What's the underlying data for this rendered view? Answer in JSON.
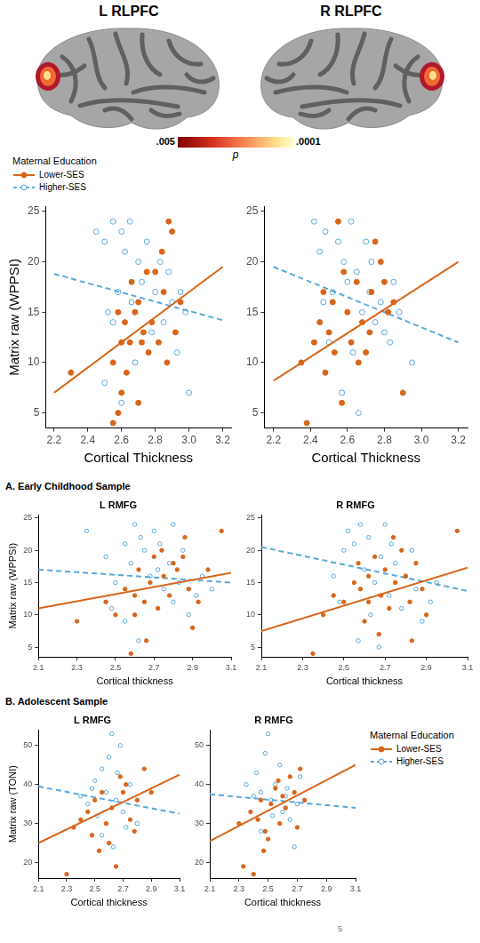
{
  "brain_panels": {
    "titles": [
      "L RLPFC",
      "R RLPFC"
    ],
    "colorbar": {
      "label": "p",
      "range": [
        0.005,
        0.0001
      ],
      "ticks": [
        {
          "value": 0.005,
          "label": ".005"
        },
        {
          "value": 0.0001,
          "label": ".0001"
        }
      ]
    }
  },
  "legend_title": "Maternal Education",
  "sections": [
    "A. Early Childhood Sample",
    "B. Adolescent Sample"
  ],
  "page_number": 5,
  "chart_data": [
    {
      "type": "scatter",
      "x_label": "Cortical Thickness",
      "y_label": "Matrix raw (WPPSI)",
      "xlim": [
        2.15,
        3.25
      ],
      "xticks": [
        2.2,
        2.4,
        2.6,
        2.8,
        {
          "value": 3,
          "label": "3.0"
        },
        3.2
      ],
      "ylim": [
        3.5,
        25.5
      ],
      "yticks": [
        5,
        10,
        15,
        20,
        25
      ],
      "grid": false,
      "legend": "top",
      "series": [
        {
          "name": "Lower-SES",
          "color": "#d8661a",
          "marker": "circle-filled",
          "line_style": "solid",
          "x": [
            2.3,
            2.55,
            2.58,
            2.6,
            2.62,
            2.55,
            2.65,
            2.68,
            2.7,
            2.72,
            2.75,
            2.78,
            2.8,
            2.82,
            2.85,
            2.88,
            2.9,
            2.92,
            2.95,
            2.6,
            2.7,
            2.76,
            2.84,
            2.66,
            2.58,
            2.73,
            2.87,
            2.63
          ],
          "y": [
            9,
            4,
            5,
            12,
            14,
            10,
            12,
            15,
            16,
            12,
            19,
            14,
            19,
            12,
            17,
            24,
            23,
            13,
            16,
            7,
            6,
            11,
            21,
            18,
            15,
            13,
            10,
            9
          ],
          "fit": {
            "x": [
              2.2,
              3.2
            ],
            "y": [
              7,
              19.5
            ]
          }
        },
        {
          "name": "Higher-SES",
          "color": "#5aa9dd",
          "marker": "circle-open",
          "line_style": "dashed",
          "x": [
            2.45,
            2.5,
            2.55,
            2.6,
            2.62,
            2.65,
            2.58,
            2.52,
            2.7,
            2.72,
            2.75,
            2.8,
            2.85,
            2.9,
            2.95,
            3.0,
            2.93,
            2.68,
            2.6,
            2.55,
            2.78,
            2.83,
            2.5,
            2.98,
            2.66,
            2.88
          ],
          "y": [
            23,
            22,
            24,
            23,
            21,
            24,
            17,
            15,
            20,
            18,
            22,
            17,
            14,
            16,
            17,
            7,
            11,
            10,
            6,
            14,
            13,
            20,
            8,
            15,
            16,
            19
          ],
          "fit": {
            "x": [
              2.2,
              3.2
            ],
            "y": [
              18.8,
              14.2
            ]
          }
        }
      ]
    },
    {
      "type": "scatter",
      "x_label": "Cortical Thickness",
      "xlim": [
        2.15,
        3.25
      ],
      "xticks": [
        2.2,
        2.4,
        2.6,
        2.8,
        {
          "value": 3,
          "label": "3.0"
        },
        3.2
      ],
      "ylim": [
        3.5,
        25.5
      ],
      "yticks": [
        5,
        10,
        15,
        20,
        25
      ],
      "grid": false,
      "series": [
        {
          "name": "Lower-SES",
          "color": "#d8661a",
          "marker": "circle-filled",
          "line_style": "solid",
          "x": [
            2.35,
            2.38,
            2.42,
            2.45,
            2.48,
            2.5,
            2.52,
            2.55,
            2.58,
            2.6,
            2.62,
            2.65,
            2.68,
            2.7,
            2.72,
            2.75,
            2.78,
            2.8,
            2.85,
            2.9,
            2.57,
            2.66,
            2.73,
            2.53,
            2.82,
            2.47
          ],
          "y": [
            10,
            4,
            12,
            14,
            9,
            13,
            16,
            24,
            19,
            15,
            12,
            18,
            14,
            11,
            13,
            22,
            20,
            18,
            16,
            7,
            6,
            10,
            17,
            11,
            15,
            17
          ],
          "fit": {
            "x": [
              2.2,
              3.2
            ],
            "y": [
              8.2,
              20
            ]
          }
        },
        {
          "name": "Higher-SES",
          "color": "#5aa9dd",
          "marker": "circle-open",
          "line_style": "dashed",
          "x": [
            2.42,
            2.45,
            2.48,
            2.52,
            2.55,
            2.58,
            2.6,
            2.62,
            2.65,
            2.68,
            2.7,
            2.72,
            2.75,
            2.78,
            2.8,
            2.85,
            2.88,
            2.95,
            2.5,
            2.57,
            2.63,
            2.66,
            2.73,
            2.83,
            2.47
          ],
          "y": [
            24,
            21,
            23,
            17,
            22,
            20,
            18,
            24,
            19,
            15,
            22,
            17,
            14,
            16,
            13,
            18,
            15,
            10,
            12,
            7,
            11,
            5,
            20,
            12,
            16
          ],
          "fit": {
            "x": [
              2.2,
              3.2
            ],
            "y": [
              19.5,
              12
            ]
          }
        }
      ]
    },
    {
      "type": "scatter",
      "title": "L RMFG",
      "x_label": "Cortical thickness",
      "y_label": "Matrix raw (WPPSI)",
      "xlim": [
        2.1,
        3.1
      ],
      "xticks": [
        2.1,
        2.3,
        2.5,
        2.7,
        2.9,
        3.1
      ],
      "ylim": [
        3.5,
        25.5
      ],
      "yticks": [
        5,
        10,
        15,
        20,
        25
      ],
      "grid": false,
      "series": [
        {
          "name": "Lower-SES",
          "color": "#d8661a",
          "marker": "circle-filled",
          "line_style": "solid",
          "x": [
            2.3,
            2.45,
            2.5,
            2.55,
            2.58,
            2.6,
            2.62,
            2.65,
            2.68,
            2.7,
            2.72,
            2.75,
            2.78,
            2.8,
            2.82,
            2.85,
            2.88,
            2.9,
            2.93,
            3.05,
            2.98,
            2.66,
            2.74,
            2.86,
            2.6
          ],
          "y": [
            9,
            12,
            10,
            14,
            4,
            13,
            17,
            12,
            15,
            19,
            11,
            16,
            13,
            18,
            17,
            19,
            14,
            8,
            12,
            23,
            17,
            6,
            20,
            22,
            10
          ],
          "fit": {
            "x": [
              2.1,
              3.1
            ],
            "y": [
              11,
              16.5
            ]
          }
        },
        {
          "name": "Higher-SES",
          "color": "#5aa9dd",
          "marker": "circle-open",
          "line_style": "dashed",
          "x": [
            2.35,
            2.45,
            2.5,
            2.55,
            2.58,
            2.6,
            2.63,
            2.65,
            2.68,
            2.7,
            2.72,
            2.75,
            2.78,
            2.8,
            2.83,
            2.85,
            2.88,
            2.92,
            2.95,
            2.62,
            2.55,
            2.73,
            2.8,
            3.0,
            2.48
          ],
          "y": [
            23,
            19,
            15,
            21,
            18,
            24,
            22,
            20,
            16,
            23,
            17,
            14,
            18,
            12,
            15,
            20,
            10,
            13,
            16,
            6,
            9,
            21,
            24,
            14,
            11
          ],
          "fit": {
            "x": [
              2.1,
              3.1
            ],
            "y": [
              17,
              15
            ]
          }
        }
      ]
    },
    {
      "type": "scatter",
      "title": "R RMFG",
      "x_label": "Cortical thickness",
      "xlim": [
        2.1,
        3.1
      ],
      "xticks": [
        2.1,
        2.3,
        2.5,
        2.7,
        2.9,
        3.1
      ],
      "ylim": [
        3.5,
        25.5
      ],
      "yticks": [
        5,
        10,
        15,
        20,
        25
      ],
      "grid": false,
      "series": [
        {
          "name": "Lower-SES",
          "color": "#d8661a",
          "marker": "circle-filled",
          "line_style": "solid",
          "x": [
            2.35,
            2.4,
            2.45,
            2.5,
            2.55,
            2.58,
            2.6,
            2.62,
            2.65,
            2.68,
            2.7,
            2.72,
            2.75,
            2.78,
            2.8,
            2.82,
            2.85,
            2.88,
            2.9,
            3.05,
            2.67,
            2.74,
            2.57,
            2.83,
            2.62
          ],
          "y": [
            4,
            10,
            13,
            12,
            15,
            14,
            9,
            16,
            19,
            13,
            17,
            11,
            15,
            20,
            16,
            12,
            18,
            14,
            10,
            23,
            7,
            22,
            18,
            6,
            12
          ],
          "fit": {
            "x": [
              2.1,
              3.1
            ],
            "y": [
              7.5,
              17.3
            ]
          }
        },
        {
          "name": "Higher-SES",
          "color": "#5aa9dd",
          "marker": "circle-open",
          "line_style": "dashed",
          "x": [
            2.45,
            2.5,
            2.52,
            2.55,
            2.58,
            2.6,
            2.62,
            2.65,
            2.68,
            2.7,
            2.72,
            2.75,
            2.78,
            2.8,
            2.85,
            2.88,
            2.92,
            2.57,
            2.63,
            2.73,
            2.67,
            2.83,
            2.48,
            2.95
          ],
          "y": [
            16,
            20,
            23,
            21,
            24,
            17,
            22,
            15,
            19,
            24,
            13,
            18,
            11,
            16,
            14,
            9,
            12,
            6,
            10,
            21,
            5,
            20,
            12,
            15
          ],
          "fit": {
            "x": [
              2.1,
              3.1
            ],
            "y": [
              20.5,
              13.7
            ]
          }
        }
      ]
    },
    {
      "type": "scatter",
      "title": "L RMFG",
      "x_label": "Cortical thickness",
      "y_label": "Matrix raw (TONI)",
      "xlim": [
        2.1,
        3.1
      ],
      "xticks": [
        2.1,
        2.3,
        2.5,
        2.7,
        2.9,
        3.1
      ],
      "ylim": [
        16,
        54
      ],
      "yticks": [
        20,
        30,
        40,
        50
      ],
      "grid": false,
      "series": [
        {
          "name": "Lower-SES",
          "color": "#d8661a",
          "marker": "circle-filled",
          "line_style": "solid",
          "x": [
            2.3,
            2.35,
            2.4,
            2.45,
            2.48,
            2.5,
            2.55,
            2.58,
            2.6,
            2.62,
            2.65,
            2.7,
            2.72,
            2.75,
            2.8,
            2.85,
            2.9,
            2.53,
            2.68,
            2.78
          ],
          "y": [
            17,
            29,
            31,
            33,
            27,
            36,
            38,
            30,
            25,
            34,
            19,
            38,
            40,
            31,
            36,
            44,
            38,
            23,
            42,
            28
          ],
          "fit": {
            "x": [
              2.1,
              3.1
            ],
            "y": [
              25,
              42.5
            ]
          }
        },
        {
          "name": "Higher-SES",
          "color": "#5aa9dd",
          "marker": "circle-open",
          "line_style": "dashed",
          "x": [
            2.4,
            2.45,
            2.5,
            2.52,
            2.55,
            2.58,
            2.6,
            2.62,
            2.65,
            2.68,
            2.7,
            2.72,
            2.75,
            2.8,
            2.55,
            2.63,
            2.48,
            2.66
          ],
          "y": [
            37,
            35,
            41,
            32,
            44,
            38,
            47,
            53,
            36,
            50,
            33,
            29,
            40,
            30,
            27,
            24,
            39,
            43
          ],
          "fit": {
            "x": [
              2.1,
              3.1
            ],
            "y": [
              39.5,
              32.5
            ]
          }
        }
      ]
    },
    {
      "type": "scatter",
      "title": "R RMFG",
      "x_label": "Cortical thickness",
      "xlim": [
        2.1,
        3.1
      ],
      "xticks": [
        2.1,
        2.3,
        2.5,
        2.7,
        2.9,
        3.1
      ],
      "ylim": [
        16,
        54
      ],
      "yticks": [
        20,
        30,
        40,
        50
      ],
      "grid": false,
      "legend": "right",
      "series": [
        {
          "name": "Lower-SES",
          "color": "#d8661a",
          "marker": "circle-filled",
          "line_style": "solid",
          "x": [
            2.3,
            2.33,
            2.38,
            2.4,
            2.43,
            2.45,
            2.48,
            2.5,
            2.52,
            2.55,
            2.58,
            2.6,
            2.62,
            2.65,
            2.68,
            2.7,
            2.72,
            2.75,
            2.47,
            2.57
          ],
          "y": [
            30,
            19,
            33,
            17,
            31,
            36,
            28,
            26,
            35,
            39,
            30,
            37,
            34,
            42,
            38,
            29,
            44,
            36,
            23,
            41
          ],
          "fit": {
            "x": [
              2.1,
              3.1
            ],
            "y": [
              25.5,
              45
            ]
          }
        },
        {
          "name": "Higher-SES",
          "color": "#5aa9dd",
          "marker": "circle-open",
          "line_style": "dashed",
          "x": [
            2.35,
            2.4,
            2.42,
            2.45,
            2.48,
            2.5,
            2.52,
            2.55,
            2.58,
            2.6,
            2.62,
            2.65,
            2.68,
            2.7,
            2.72,
            2.45,
            2.53,
            2.63
          ],
          "y": [
            40,
            37,
            43,
            38,
            48,
            53,
            36,
            40,
            45,
            33,
            37,
            31,
            24,
            35,
            42,
            28,
            32,
            39
          ],
          "fit": {
            "x": [
              2.1,
              3.1
            ],
            "y": [
              37.5,
              34
            ]
          }
        }
      ]
    }
  ]
}
